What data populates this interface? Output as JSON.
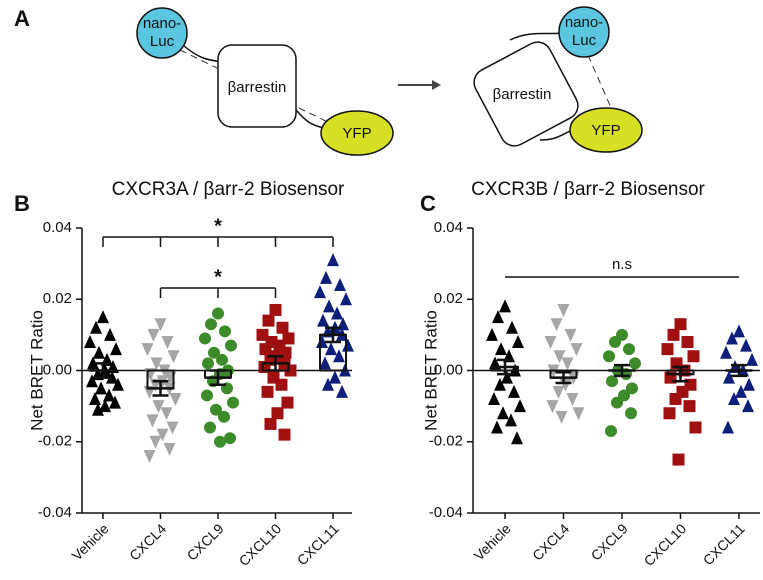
{
  "diagram": {
    "panel_label": "A",
    "left": {
      "donor": [
        "nano-",
        "Luc"
      ],
      "protein": "βarrestin",
      "acceptor": "YFP"
    },
    "right": {
      "donor": [
        "nano-",
        "Luc"
      ],
      "protein": "βarrestin",
      "acceptor": "YFP"
    }
  },
  "chart_data": [
    {
      "type": "dotplot",
      "panel_label": "B",
      "title": "CXCR3A /  βarr-2 Biosensor",
      "ylabel": "Net BRET Ratio",
      "categories": [
        "Vehicle",
        "CXCL4",
        "CXCL9",
        "CXCL10",
        "CXCL11"
      ],
      "ylim": [
        -0.04,
        0.04
      ],
      "yticks": [
        -0.04,
        -0.02,
        {
          "value": 0,
          "label": "0.00"
        },
        0.02,
        0.04
      ],
      "groups": [
        {
          "color": "#000000",
          "marker": "triangle-up",
          "mean": 0.0,
          "sem": 0.002,
          "values": [
            0.015,
            0.012,
            0.01,
            0.008,
            0.006,
            0.005,
            0.003,
            0.002,
            0.001,
            0.0,
            -0.001,
            -0.002,
            -0.003,
            -0.004,
            -0.005,
            -0.007,
            -0.008,
            -0.009,
            -0.01,
            -0.011
          ]
        },
        {
          "color": "#a6a6a6",
          "marker": "triangle-down",
          "mean": -0.005,
          "sem": 0.002,
          "values": [
            0.013,
            0.01,
            0.008,
            0.006,
            0.004,
            0.002,
            0.0,
            -0.001,
            -0.002,
            -0.003,
            -0.004,
            -0.005,
            -0.006,
            -0.008,
            -0.01,
            -0.012,
            -0.014,
            -0.016,
            -0.018,
            -0.02,
            -0.022,
            -0.024
          ]
        },
        {
          "color": "#3d8b2a",
          "marker": "circle",
          "mean": -0.002,
          "sem": 0.002,
          "values": [
            0.016,
            0.013,
            0.011,
            0.009,
            0.007,
            0.005,
            0.003,
            0.002,
            0.0,
            -0.001,
            -0.003,
            -0.005,
            -0.007,
            -0.009,
            -0.011,
            -0.013,
            -0.016,
            -0.019,
            -0.02
          ]
        },
        {
          "color": "#a01010",
          "marker": "square",
          "mean": 0.002,
          "sem": 0.002,
          "values": [
            0.017,
            0.014,
            0.012,
            0.01,
            0.009,
            0.008,
            0.007,
            0.006,
            0.005,
            0.004,
            0.003,
            0.002,
            0.001,
            0.0,
            -0.002,
            -0.004,
            -0.006,
            -0.009,
            -0.012,
            -0.015,
            -0.018
          ]
        },
        {
          "color": "#0d1f7a",
          "marker": "triangle-up",
          "mean": 0.01,
          "sem": 0.002,
          "values": [
            0.031,
            0.026,
            0.024,
            0.022,
            0.02,
            0.018,
            0.016,
            0.014,
            0.013,
            0.012,
            0.011,
            0.01,
            0.008,
            0.007,
            0.006,
            0.004,
            0.002,
            0.0,
            -0.002,
            -0.004,
            -0.006
          ]
        }
      ],
      "brackets": [
        {
          "from": 0,
          "to": 4,
          "label": "*",
          "drops": true
        },
        {
          "from": 1,
          "to": 3,
          "label": "*",
          "drops": true
        }
      ]
    },
    {
      "type": "dotplot",
      "panel_label": "C",
      "title": "CXCR3B /  βarr-2 Biosensor",
      "ylabel": "Net  BRET Ratio",
      "categories": [
        "Vehicle",
        "CXCL4",
        "CXCL9",
        "CXCL10",
        "CXCL11"
      ],
      "ylim": [
        -0.04,
        0.04
      ],
      "yticks": [
        -0.04,
        -0.02,
        {
          "value": 0,
          "label": "0.00"
        },
        0.02,
        0.04
      ],
      "groups": [
        {
          "color": "#000000",
          "marker": "triangle-up",
          "mean": 0.001,
          "sem": 0.002,
          "values": [
            0.018,
            0.015,
            0.012,
            0.01,
            0.008,
            0.006,
            0.004,
            0.002,
            0.0,
            -0.002,
            -0.004,
            -0.006,
            -0.008,
            -0.01,
            -0.012,
            -0.014,
            -0.016,
            -0.019
          ]
        },
        {
          "color": "#a6a6a6",
          "marker": "triangle-down",
          "mean": -0.002,
          "sem": 0.0015,
          "values": [
            0.017,
            0.013,
            0.01,
            0.008,
            0.006,
            0.004,
            0.002,
            0.0,
            -0.002,
            -0.004,
            -0.006,
            -0.008,
            -0.01,
            -0.012,
            -0.013
          ]
        },
        {
          "color": "#3d8b2a",
          "marker": "circle",
          "mean": 0.0,
          "sem": 0.0015,
          "values": [
            0.01,
            0.008,
            0.006,
            0.004,
            0.002,
            0.0,
            -0.001,
            -0.003,
            -0.005,
            -0.007,
            -0.009,
            -0.012,
            -0.017
          ]
        },
        {
          "color": "#a01010",
          "marker": "square",
          "mean": -0.001,
          "sem": 0.002,
          "values": [
            0.013,
            0.01,
            0.008,
            0.006,
            0.004,
            0.002,
            0.0,
            -0.002,
            -0.004,
            -0.006,
            -0.008,
            -0.01,
            -0.012,
            -0.016,
            -0.025
          ]
        },
        {
          "color": "#0d1f7a",
          "marker": "triangle-up",
          "mean": 0.0,
          "sem": 0.0015,
          "values": [
            0.011,
            0.009,
            0.007,
            0.005,
            0.003,
            0.001,
            0.0,
            -0.002,
            -0.004,
            -0.006,
            -0.008,
            -0.01,
            -0.016
          ]
        }
      ],
      "brackets": [
        {
          "from": 0,
          "to": 4,
          "label": "n.s",
          "drops": false
        }
      ]
    }
  ]
}
